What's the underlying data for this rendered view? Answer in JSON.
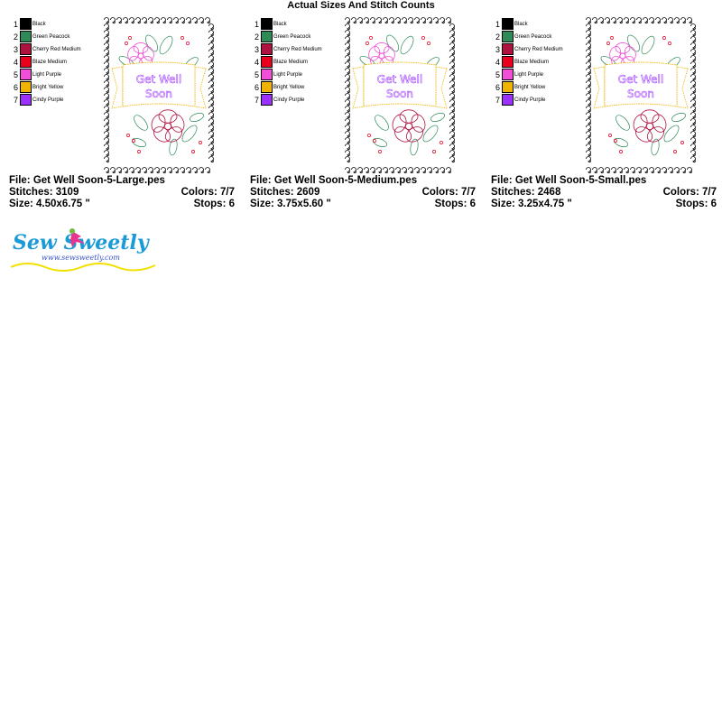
{
  "page": {
    "title": "Actual Sizes And Stitch Counts"
  },
  "palette": [
    {
      "num": "1",
      "name": "Black",
      "color": "#000000"
    },
    {
      "num": "2",
      "name": "Green Peacock",
      "color": "#2e8b57"
    },
    {
      "num": "3",
      "name": "Cherry Red Medium",
      "color": "#b0123f"
    },
    {
      "num": "4",
      "name": "Blaze Medium",
      "color": "#e8001c"
    },
    {
      "num": "5",
      "name": "Light Purple",
      "color": "#f24fd8"
    },
    {
      "num": "6",
      "name": "Bright Yellow",
      "color": "#f0b400"
    },
    {
      "num": "7",
      "name": "Cindy Purple",
      "color": "#9b30ff"
    }
  ],
  "design": {
    "banner_line1": "Get Well",
    "banner_line2": "Soon"
  },
  "variants": [
    {
      "file_label": "File: Get Well Soon-5-Large.pes",
      "stitches_label": "Stitches: 3109",
      "colors_label": "Colors: 7/7",
      "size_label": "Size: 4.50x6.75 \"",
      "stops_label": "Stops: 6"
    },
    {
      "file_label": "File: Get Well Soon-5-Medium.pes",
      "stitches_label": "Stitches: 2609",
      "colors_label": "Colors: 7/7",
      "size_label": "Size: 3.75x5.60 \"",
      "stops_label": "Stops: 6"
    },
    {
      "file_label": "File: Get Well Soon-5-Small.pes",
      "stitches_label": "Stitches: 2468",
      "colors_label": "Colors: 7/7",
      "size_label": "Size: 3.25x4.75 \"",
      "stops_label": "Stops: 6"
    }
  ],
  "logo": {
    "brand": "Sew Sweetly",
    "url": "www.sewsweetly.com"
  }
}
